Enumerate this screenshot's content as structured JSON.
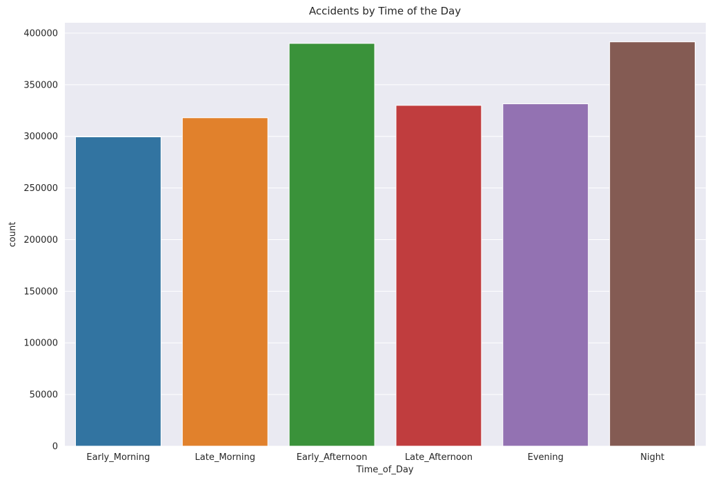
{
  "chart_data": {
    "type": "bar",
    "title": "Accidents by Time of the Day",
    "xlabel": "Time_of_Day",
    "ylabel": "count",
    "categories": [
      "Early_Morning",
      "Late_Morning",
      "Early_Afternoon",
      "Late_Afternoon",
      "Evening",
      "Night"
    ],
    "values": [
      299500,
      318000,
      390000,
      330000,
      331500,
      391500
    ],
    "colors": [
      "#3274a1",
      "#e1812c",
      "#3a923a",
      "#c03d3e",
      "#9372b2",
      "#845b53"
    ],
    "ylim": [
      0,
      410000
    ],
    "yticks": [
      0,
      50000,
      100000,
      150000,
      200000,
      250000,
      300000,
      350000,
      400000
    ],
    "ytick_labels": [
      "0",
      "50000",
      "100000",
      "150000",
      "200000",
      "250000",
      "300000",
      "350000",
      "400000"
    ],
    "grid": true,
    "background": "#eaeaf2",
    "grid_color": "#ffffff"
  }
}
